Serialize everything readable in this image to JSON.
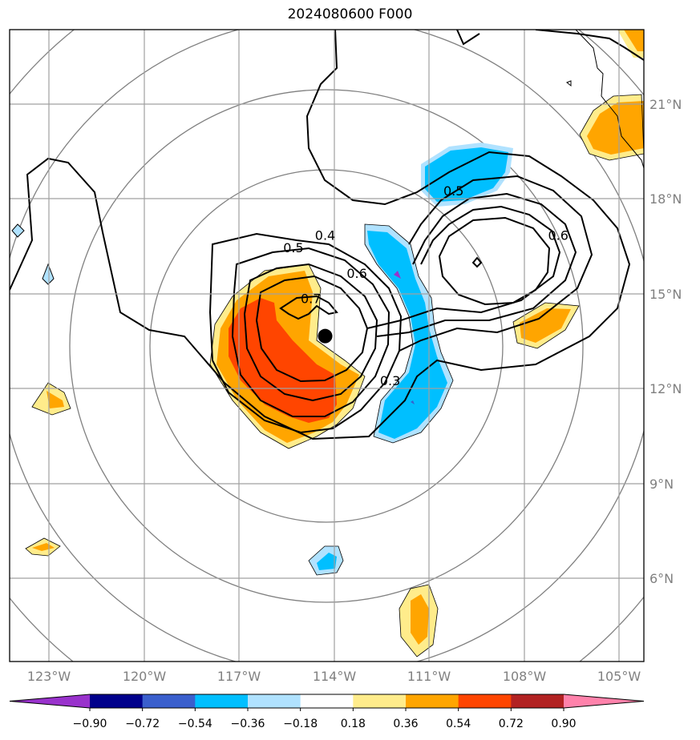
{
  "chart_data": {
    "type": "map-contour",
    "title": "2024080600 F000",
    "lon_ticks": [
      "123°W",
      "120°W",
      "117°W",
      "114°W",
      "111°W",
      "108°W",
      "105°W"
    ],
    "lat_ticks": [
      "21°N",
      "18°N",
      "15°N",
      "12°N",
      "9°N",
      "6°N"
    ],
    "xlim": [
      -124.2,
      -104.2
    ],
    "ylim": [
      3.0,
      23.0
    ],
    "grid": true,
    "center": {
      "lon": -114.25,
      "lat": 13.3
    },
    "line_contour_labels": [
      {
        "text": "0.4",
        "lon": -114.25,
        "lat": 16.5
      },
      {
        "text": "0.5",
        "lon": -115.25,
        "lat": 16.1
      },
      {
        "text": "0.6",
        "lon": -113.25,
        "lat": 15.3
      },
      {
        "text": "0.7",
        "lon": -114.7,
        "lat": 14.5
      },
      {
        "text": "0.3",
        "lon": -112.2,
        "lat": 11.9
      },
      {
        "text": "0.5",
        "lon": -110.2,
        "lat": 17.9
      },
      {
        "text": "0.6",
        "lon": -106.9,
        "lat": 16.5
      }
    ],
    "colorbar": {
      "levels": [
        "−0.90",
        "−0.72",
        "−0.54",
        "−0.36",
        "−0.18",
        "0.18",
        "0.36",
        "0.54",
        "0.72",
        "0.90"
      ],
      "colors": [
        "#9932cc",
        "#00008b",
        "#3a5fcd",
        "#00bfff",
        "#b0e2ff",
        "#ffffff",
        "#ffec8b",
        "#ffa500",
        "#ff4500",
        "#b22222",
        "#ff82ab"
      ]
    }
  }
}
